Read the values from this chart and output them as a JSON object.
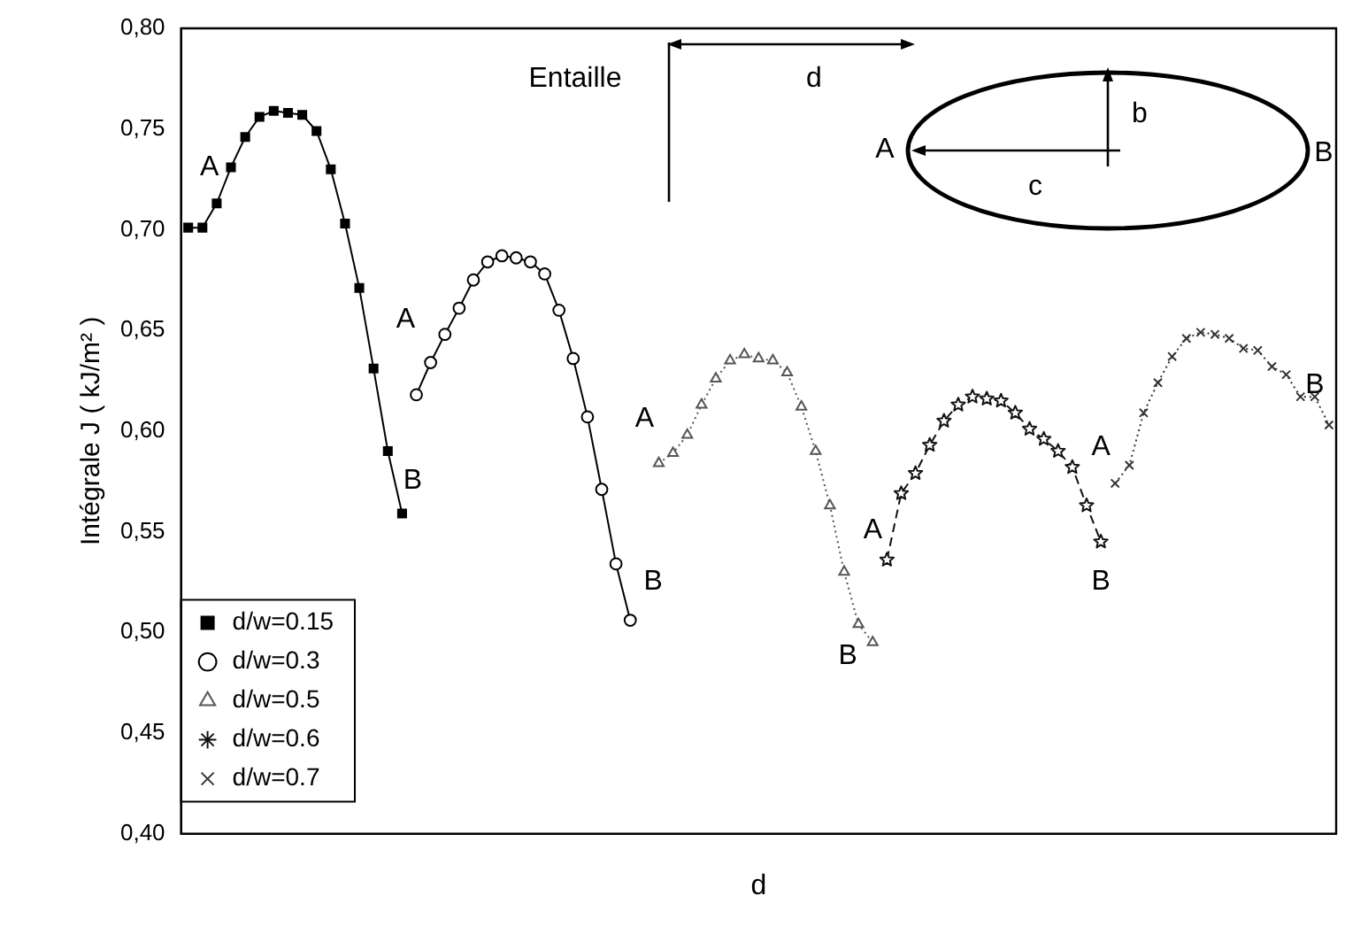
{
  "chart_data": {
    "type": "line",
    "xlabel": "d",
    "ylabel": "Intégrale J ( kJ/m² )",
    "categories": [
      null,
      null,
      null,
      null,
      null,
      null,
      null,
      null,
      null,
      null,
      null,
      null,
      null,
      null,
      null,
      null,
      null,
      null,
      null,
      null,
      null,
      null,
      null,
      null,
      null,
      null,
      null,
      null,
      null,
      null,
      null,
      null,
      null,
      null,
      null,
      null,
      null,
      null,
      null,
      null,
      null,
      null,
      null,
      null,
      null,
      null,
      null,
      null,
      null,
      null,
      null,
      null,
      null,
      null,
      null,
      null,
      null,
      null,
      null,
      null,
      null,
      null,
      null,
      null,
      null,
      null,
      null,
      null,
      null,
      null,
      null,
      null,
      null,
      null,
      null,
      null,
      null,
      null,
      null,
      null,
      null
    ],
    "series": [
      {
        "name": "d/w=0.15",
        "color": "#000000",
        "marker": "square",
        "line_style": "solid",
        "values": [
          0.701,
          0.701,
          0.713,
          0.731,
          0.746,
          0.756,
          0.759,
          0.758,
          0.757,
          0.749,
          0.73,
          0.703,
          0.671,
          0.631,
          0.59,
          0.559,
          null,
          null,
          null,
          null,
          null,
          null,
          null,
          null,
          null,
          null,
          null,
          null,
          null,
          null,
          null,
          null,
          null,
          null,
          null,
          null,
          null,
          null,
          null,
          null,
          null,
          null,
          null,
          null,
          null,
          null,
          null,
          null,
          null,
          null,
          null,
          null,
          null,
          null,
          null,
          null,
          null,
          null,
          null,
          null,
          null,
          null,
          null,
          null,
          null,
          null,
          null,
          null,
          null,
          null,
          null,
          null,
          null,
          null,
          null,
          null,
          null,
          null,
          null,
          null,
          null
        ]
      },
      {
        "name": "d/w=0.3",
        "color": "#000000",
        "marker": "circle",
        "line_style": "solid",
        "values": [
          null,
          null,
          null,
          null,
          null,
          null,
          null,
          null,
          null,
          null,
          null,
          null,
          null,
          null,
          null,
          null,
          0.618,
          0.634,
          0.648,
          0.661,
          0.675,
          0.684,
          0.687,
          0.686,
          0.684,
          0.678,
          0.66,
          0.636,
          0.607,
          0.571,
          0.534,
          0.506,
          null,
          null,
          null,
          null,
          null,
          null,
          null,
          null,
          null,
          null,
          null,
          null,
          null,
          null,
          null,
          null,
          null,
          null,
          null,
          null,
          null,
          null,
          null,
          null,
          null,
          null,
          null,
          null,
          null,
          null,
          null,
          null,
          null,
          null,
          null,
          null,
          null,
          null,
          null,
          null,
          null,
          null,
          null,
          null,
          null,
          null,
          null,
          null,
          null
        ]
      },
      {
        "name": "d/w=0.5",
        "color": "#555555",
        "marker": "triangle",
        "line_style": "dotted",
        "values": [
          null,
          null,
          null,
          null,
          null,
          null,
          null,
          null,
          null,
          null,
          null,
          null,
          null,
          null,
          null,
          null,
          null,
          null,
          null,
          null,
          null,
          null,
          null,
          null,
          null,
          null,
          null,
          null,
          null,
          null,
          null,
          null,
          null,
          0.584,
          0.589,
          0.598,
          0.613,
          0.626,
          0.635,
          0.638,
          0.636,
          0.635,
          0.629,
          0.612,
          0.59,
          0.563,
          0.53,
          0.504,
          0.495,
          null,
          null,
          null,
          null,
          null,
          null,
          null,
          null,
          null,
          null,
          null,
          null,
          null,
          null,
          null,
          null,
          null,
          null,
          null,
          null,
          null,
          null,
          null,
          null,
          null,
          null,
          null,
          null,
          null,
          null,
          null,
          null
        ]
      },
      {
        "name": "d/w=0.6",
        "color": "#111111",
        "marker": "star",
        "line_style": "dashed",
        "values": [
          null,
          null,
          null,
          null,
          null,
          null,
          null,
          null,
          null,
          null,
          null,
          null,
          null,
          null,
          null,
          null,
          null,
          null,
          null,
          null,
          null,
          null,
          null,
          null,
          null,
          null,
          null,
          null,
          null,
          null,
          null,
          null,
          null,
          null,
          null,
          null,
          null,
          null,
          null,
          null,
          null,
          null,
          null,
          null,
          null,
          null,
          null,
          null,
          null,
          0.536,
          0.569,
          0.579,
          0.593,
          0.605,
          0.613,
          0.617,
          0.616,
          0.615,
          0.609,
          0.601,
          0.596,
          0.59,
          0.582,
          0.563,
          0.545,
          null,
          null,
          null,
          null,
          null,
          null,
          null,
          null,
          null,
          null,
          null,
          null,
          null,
          null,
          null,
          null
        ]
      },
      {
        "name": "d/w=0.7",
        "color": "#333333",
        "marker": "cross",
        "line_style": "dotted",
        "values": [
          null,
          null,
          null,
          null,
          null,
          null,
          null,
          null,
          null,
          null,
          null,
          null,
          null,
          null,
          null,
          null,
          null,
          null,
          null,
          null,
          null,
          null,
          null,
          null,
          null,
          null,
          null,
          null,
          null,
          null,
          null,
          null,
          null,
          null,
          null,
          null,
          null,
          null,
          null,
          null,
          null,
          null,
          null,
          null,
          null,
          null,
          null,
          null,
          null,
          null,
          null,
          null,
          null,
          null,
          null,
          null,
          null,
          null,
          null,
          null,
          null,
          null,
          null,
          null,
          null,
          0.574,
          0.583,
          0.609,
          0.624,
          0.637,
          0.646,
          0.649,
          0.648,
          0.646,
          0.641,
          0.64,
          0.632,
          0.628,
          0.617,
          0.617,
          0.603
        ]
      }
    ],
    "ylim": [
      0.4,
      0.8
    ],
    "yticks": [
      {
        "value": 0.4,
        "label": "0,40"
      },
      {
        "value": 0.45,
        "label": "0,45"
      },
      {
        "value": 0.5,
        "label": "0,50"
      },
      {
        "value": 0.55,
        "label": "0,55"
      },
      {
        "value": 0.6,
        "label": "0,60"
      },
      {
        "value": 0.65,
        "label": "0,65"
      },
      {
        "value": 0.7,
        "label": "0,70"
      },
      {
        "value": 0.75,
        "label": "0,75"
      },
      {
        "value": 0.8,
        "label": "0,80"
      }
    ],
    "tick_labels": "y",
    "legend": "bottom left",
    "annotations": [
      "A",
      "B",
      "A",
      "B",
      "A",
      "B",
      "A",
      "B",
      "A",
      "B",
      "Entaille",
      "d",
      "A",
      "b",
      "c",
      "B"
    ]
  }
}
